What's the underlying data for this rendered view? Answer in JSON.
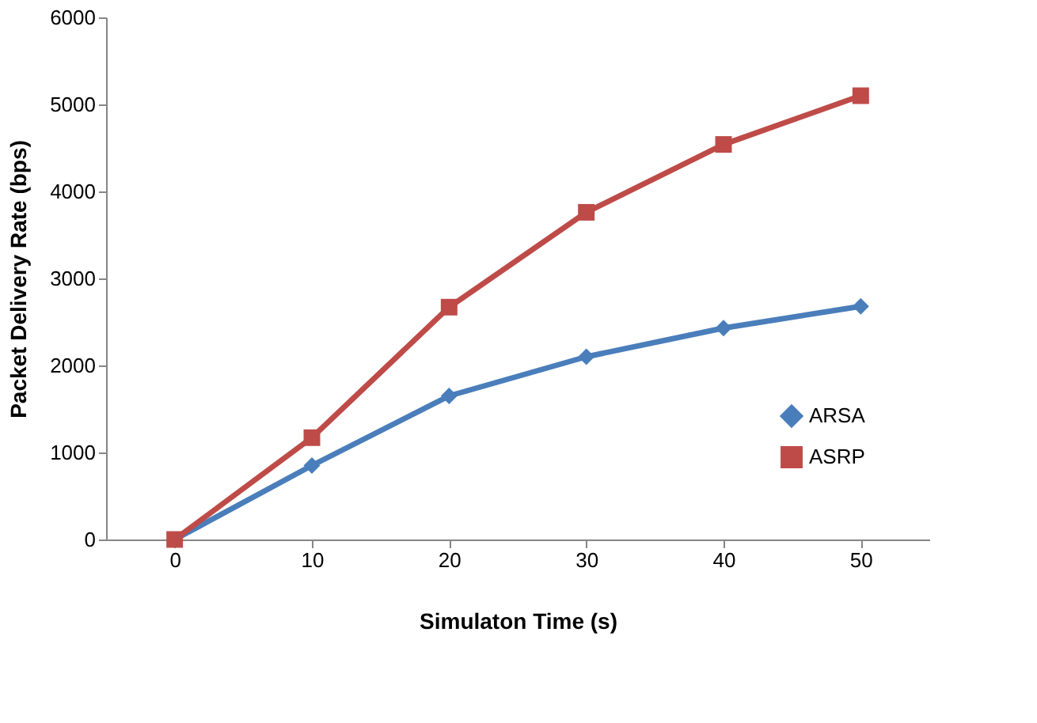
{
  "chart_data": {
    "type": "line",
    "xlabel": "Simulaton Time (s)",
    "ylabel": "Packet Delivery Rate (bps)",
    "categories": [
      "0",
      "10",
      "20",
      "30",
      "40",
      "50"
    ],
    "series": [
      {
        "name": "ARSA",
        "color": "#4a7ebb",
        "marker": "diamond",
        "values": [
          0,
          850,
          1650,
          2100,
          2430,
          2680
        ]
      },
      {
        "name": "ASRP",
        "color": "#be4b48",
        "marker": "square",
        "values": [
          0,
          1170,
          2670,
          3760,
          4540,
          5100
        ]
      }
    ],
    "ylim": [
      0,
      6000
    ],
    "yticks": [
      0,
      1000,
      2000,
      3000,
      4000,
      5000,
      6000
    ],
    "grid": false,
    "legend": "bottom right",
    "line_style": "solid"
  }
}
